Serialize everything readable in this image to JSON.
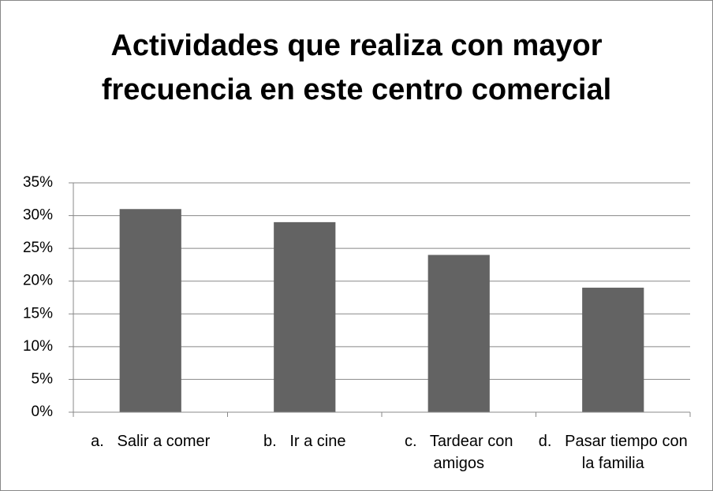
{
  "chart_data": {
    "type": "bar",
    "title": "Actividades que realiza con mayor frecuencia en este centro comercial",
    "categories": [
      "a.   Salir a comer",
      "b.   Ir a cine",
      "c.   Tardear con amigos",
      "d.   Pasar tiempo con la familia"
    ],
    "values": [
      31,
      29,
      24,
      19
    ],
    "color": "#636363",
    "ylim": [
      0,
      35
    ],
    "yticks": [
      {
        "value": 0,
        "label": "0%"
      },
      {
        "value": 5,
        "label": "5%"
      },
      {
        "value": 10,
        "label": "10%"
      },
      {
        "value": 15,
        "label": "15%"
      },
      {
        "value": 20,
        "label": "20%"
      },
      {
        "value": 25,
        "label": "25%"
      },
      {
        "value": 30,
        "label": "30%"
      },
      {
        "value": 35,
        "label": "35%"
      }
    ],
    "grid": true
  }
}
